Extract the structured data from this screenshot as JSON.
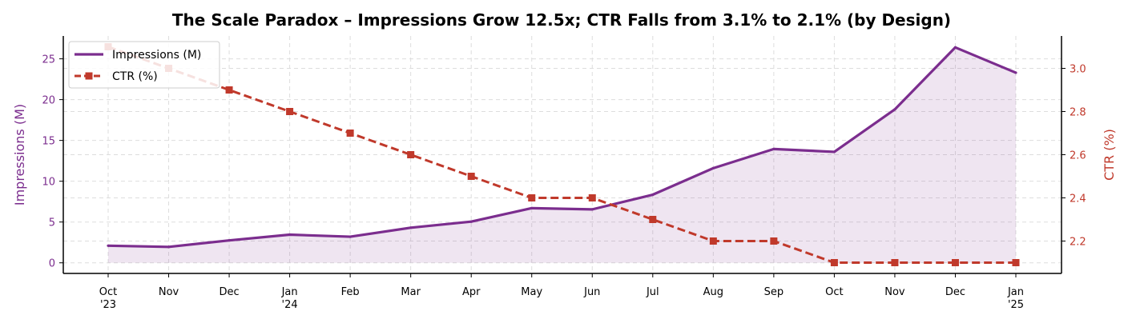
{
  "chart_data": {
    "type": "line",
    "title": "The Scale Paradox – Impressions Grow 12.5x; CTR Falls from 3.1% to 2.1% (by Design)",
    "categories": [
      "Oct\n'23",
      "Nov",
      "Dec",
      "Jan\n'24",
      "Feb",
      "Mar",
      "Apr",
      "May",
      "Jun",
      "Jul",
      "Aug",
      "Sep",
      "Oct",
      "Nov",
      "Dec",
      "Jan\n'25"
    ],
    "ylabel_left": "Impressions (M)",
    "ylabel_right": "CTR (%)",
    "ylim_left": [
      -1.3,
      27.8
    ],
    "ylim_right": [
      2.05,
      3.15
    ],
    "yticks_left": [
      0,
      5,
      10,
      15,
      20,
      25
    ],
    "yticks_right": [
      2.2,
      2.4,
      2.6,
      2.8,
      3.0
    ],
    "yticks_right_labels": [
      "2.2",
      "2.4",
      "2.6",
      "2.8",
      "3.0"
    ],
    "grid": true,
    "legend_position": "upper-left",
    "series": [
      {
        "name": "Impressions (M)",
        "axis": "left",
        "color": "#7b2d8e",
        "style": "solid",
        "fill": true,
        "values": [
          2.1,
          1.95,
          2.75,
          3.45,
          3.2,
          4.3,
          5.05,
          6.7,
          6.55,
          8.35,
          11.6,
          13.95,
          13.6,
          18.8,
          26.4,
          23.3
        ]
      },
      {
        "name": "CTR (%)",
        "axis": "right",
        "color": "#c0392b",
        "style": "dashed",
        "marker": "square",
        "values": [
          3.1,
          3.0,
          2.9,
          2.8,
          2.7,
          2.6,
          2.5,
          2.4,
          2.4,
          2.3,
          2.2,
          2.2,
          2.1,
          2.1,
          2.1,
          2.1
        ]
      }
    ]
  }
}
